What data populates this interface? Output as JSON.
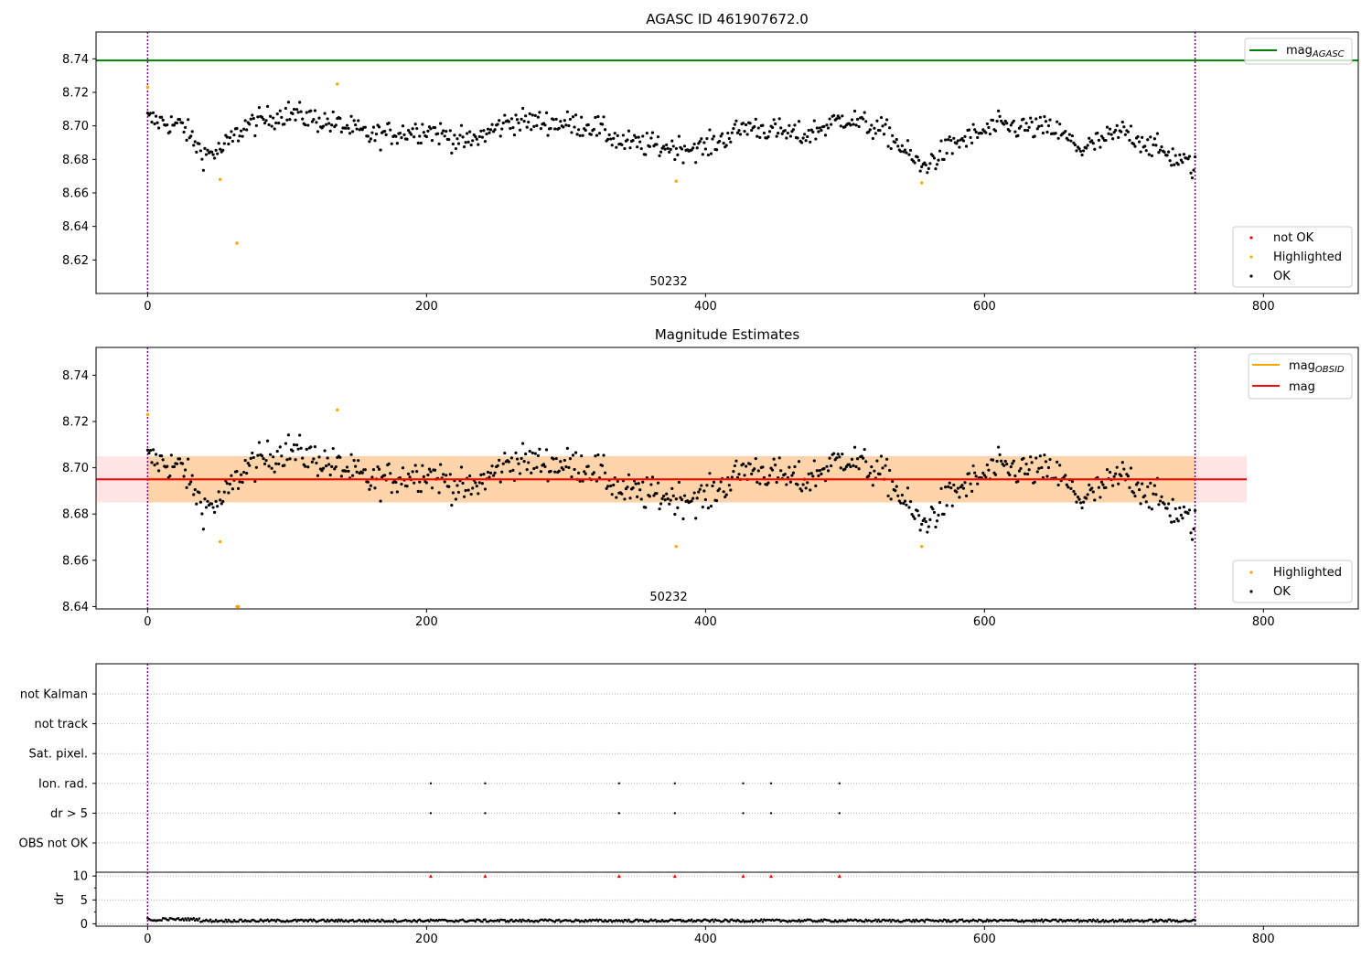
{
  "chart_data": [
    {
      "type": "scatter",
      "title": "AGASC ID 461907672.0",
      "xlim": [
        -37,
        868
      ],
      "ylim": [
        8.6,
        8.756
      ],
      "xticks": [
        0,
        200,
        400,
        600,
        800
      ],
      "yticks": [
        8.62,
        8.64,
        8.66,
        8.68,
        8.7,
        8.72,
        8.74
      ],
      "grid": false,
      "obsid_label": "50232",
      "obsid_x": 376,
      "vlines_x": [
        0,
        751
      ],
      "reference_line": {
        "name": "mag",
        "subscript": "AGASC",
        "y": 8.739,
        "color": "#008000"
      },
      "legend_top": {
        "placement": "top-right",
        "entries": [
          {
            "label": "mag",
            "subscript": "AGASC",
            "color": "#008000"
          }
        ]
      },
      "legend_bottom": {
        "placement": "bottom-right",
        "entries": [
          {
            "label": "not OK",
            "color": "#ff0000"
          },
          {
            "label": "Highlighted",
            "color": "#ffa500"
          },
          {
            "label": "OK",
            "color": "#000000"
          }
        ]
      },
      "highlighted_points": [
        [
          0,
          8.723
        ],
        [
          52,
          8.668
        ],
        [
          64,
          8.63
        ],
        [
          136,
          8.725
        ],
        [
          379,
          8.667
        ],
        [
          555,
          8.666
        ]
      ]
    },
    {
      "type": "scatter",
      "title": "Magnitude Estimates",
      "xlim": [
        -37,
        868
      ],
      "ylim": [
        8.639,
        8.752
      ],
      "xticks": [
        0,
        200,
        400,
        600,
        800
      ],
      "yticks": [
        8.64,
        8.66,
        8.68,
        8.7,
        8.72,
        8.74
      ],
      "grid": false,
      "obsid_label": "50232",
      "obsid_x": 376,
      "vlines_x": [
        0,
        751
      ],
      "mag_line": {
        "name": "mag",
        "y": 8.695,
        "x_range": [
          -37,
          788
        ],
        "color": "#ff0000",
        "band": [
          8.685,
          8.705
        ]
      },
      "mag_obsid_line": {
        "name": "mag",
        "subscript": "OBSID",
        "y": 8.695,
        "x_range": [
          0,
          751
        ],
        "color": "#ffa500",
        "band": [
          8.685,
          8.705
        ]
      },
      "legend_top": {
        "placement": "top-right",
        "entries": [
          {
            "label": "mag",
            "subscript": "OBSID",
            "color": "#ffa500"
          },
          {
            "label": "mag",
            "color": "#ff0000"
          }
        ]
      },
      "legend_bottom": {
        "placement": "bottom-right",
        "entries": [
          {
            "label": "Highlighted",
            "color": "#ffa500"
          },
          {
            "label": "OK",
            "color": "#000000"
          }
        ]
      },
      "highlighted_points": [
        [
          0,
          8.723
        ],
        [
          52,
          8.668
        ],
        [
          64,
          8.64
        ],
        [
          65,
          8.64
        ],
        [
          136,
          8.725
        ],
        [
          379,
          8.666
        ],
        [
          555,
          8.666
        ]
      ]
    },
    {
      "type": "scatter",
      "xlim": [
        -37,
        868
      ],
      "xticks": [
        0,
        200,
        400,
        600,
        800
      ],
      "vlines_x": [
        0,
        751
      ],
      "flag_categories": [
        "not Kalman",
        "not track",
        "Sat. pixel.",
        "Ion. rad.",
        "dr > 5",
        "OBS not OK"
      ],
      "flag_points": {
        "Ion. rad.": [
          203,
          242,
          338,
          378,
          427,
          447,
          496
        ],
        "dr > 5": [
          203,
          242,
          338,
          378,
          427,
          447,
          496
        ]
      }
    },
    {
      "type": "scatter",
      "ylabel": "dr",
      "xlim": [
        -37,
        868
      ],
      "ylim": [
        -0.5,
        10.8
      ],
      "xticks": [
        0,
        200,
        400,
        600,
        800
      ],
      "yticks": [
        0,
        5,
        10
      ],
      "capped_points_x": [
        203,
        242,
        338,
        378,
        427,
        447,
        496
      ],
      "capped_value": 10,
      "capped_color": "#ff0000",
      "series_color": "#000000"
    }
  ]
}
